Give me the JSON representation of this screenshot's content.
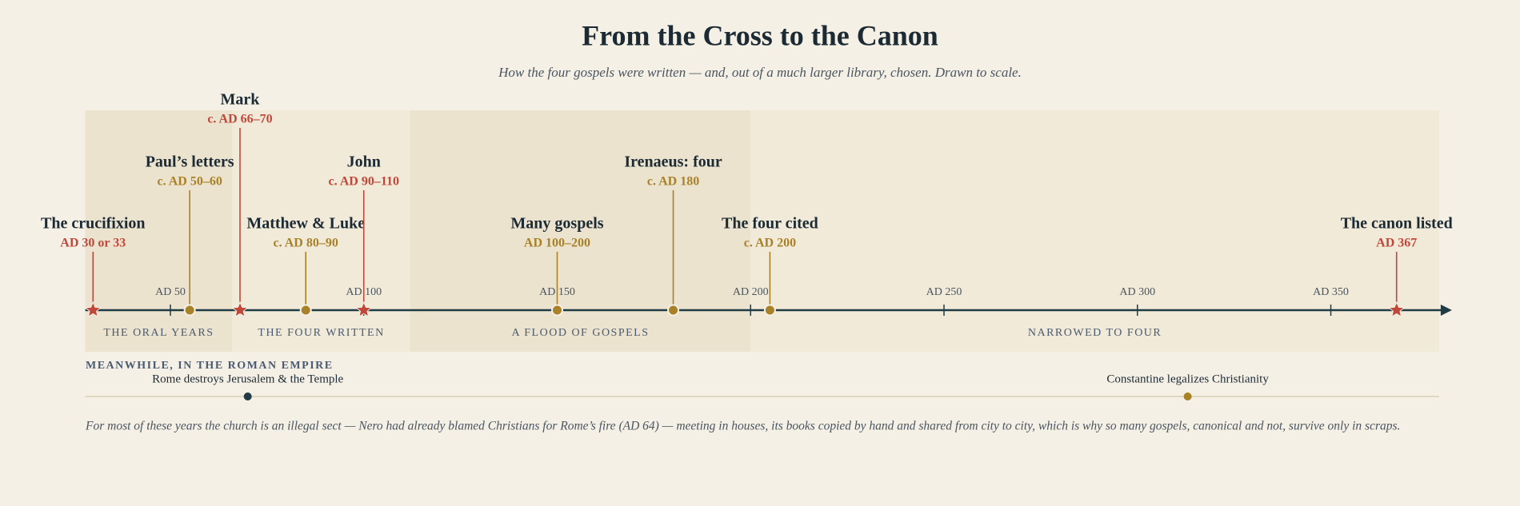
{
  "title": "From the Cross to the Canon",
  "subtitle": "How the four gospels were written — and, out of a much larger library, chosen. Drawn to scale.",
  "axis": {
    "xlim": [
      28,
      378
    ],
    "xticks": [
      {
        "value": 50,
        "label": "AD 50"
      },
      {
        "value": 100,
        "label": "AD 100"
      },
      {
        "value": 150,
        "label": "AD 150"
      },
      {
        "value": 200,
        "label": "AD 200"
      },
      {
        "value": 250,
        "label": "AD 250"
      },
      {
        "value": 300,
        "label": "AD 300"
      },
      {
        "value": 350,
        "label": "AD 350"
      }
    ]
  },
  "eras": [
    {
      "label": "THE ORAL YEARS",
      "start": 28,
      "end": 66,
      "color": "#ece3cf"
    },
    {
      "label": "THE FOUR WRITTEN",
      "start": 66,
      "end": 112,
      "color": "#f1ead9"
    },
    {
      "label": "A FLOOD OF GOSPELS",
      "start": 112,
      "end": 200,
      "color": "#ece3cf"
    },
    {
      "label": "NARROWED TO FOUR",
      "start": 200,
      "end": 378,
      "color": "#f1ead9"
    }
  ],
  "events": [
    {
      "label": "The crucifixion",
      "date": "AD 30 or 33",
      "year": 30,
      "marker": "star",
      "color": "#c0483a"
    },
    {
      "label": "Paul’s letters",
      "date": "c. AD 50–60",
      "year": 55,
      "marker": "dot",
      "color": "#a88128"
    },
    {
      "label": "Mark",
      "date": "c. AD 66–70",
      "year": 68,
      "marker": "star",
      "color": "#c0483a"
    },
    {
      "label": "Matthew & Luke",
      "date": "c. AD 80–90",
      "year": 85,
      "marker": "dot",
      "color": "#a88128"
    },
    {
      "label": "John",
      "date": "c. AD 90–110",
      "year": 100,
      "marker": "star",
      "color": "#c0483a"
    },
    {
      "label": "Many gospels",
      "date": "AD 100–200",
      "year": 150,
      "marker": "dot",
      "color": "#a88128"
    },
    {
      "label": "Irenaeus: four",
      "date": "c. AD 180",
      "year": 180,
      "marker": "dot",
      "color": "#a88128"
    },
    {
      "label": "The four cited",
      "date": "c. AD 200",
      "year": 205,
      "marker": "dot",
      "color": "#a88128"
    },
    {
      "label": "The canon listed",
      "date": "AD 367",
      "year": 367,
      "marker": "star",
      "color": "#c0483a"
    }
  ],
  "empire": {
    "heading": "MEANWHILE, IN THE ROMAN EMPIRE",
    "events": [
      {
        "label": "Rome destroys Jerusalem & the Temple",
        "year": 70,
        "color": "#1f3b44"
      },
      {
        "label": "Constantine legalizes Christianity",
        "year": 313,
        "color": "#a88128"
      }
    ]
  },
  "note": "For most of these years the church is an illegal sect — Nero had already blamed Christians for Rome’s fire (AD 64) — meeting in houses, its books copied by hand and shared from city to city, which is why so many gospels, canonical and not, survive only in scraps."
}
